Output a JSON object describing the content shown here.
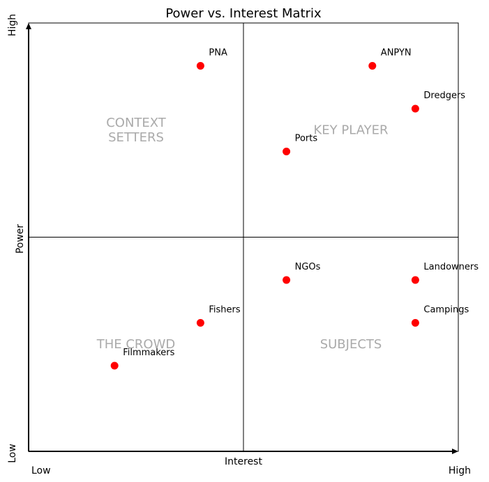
{
  "chart_data": {
    "type": "scatter",
    "title": "Power vs. Interest Matrix",
    "xlabel": "Interest",
    "ylabel": "Power",
    "xlim": [
      0,
      10
    ],
    "ylim": [
      0,
      10
    ],
    "x_low_label": "Low",
    "x_high_label": "High",
    "y_low_label": "Low",
    "y_high_label": "High",
    "grid": false,
    "quadrants": [
      {
        "id": "context-setters",
        "label": [
          "CONTEXT",
          "SETTERS"
        ],
        "x": 2.5,
        "y": 7.5
      },
      {
        "id": "key-player",
        "label": [
          "KEY PLAYER"
        ],
        "x": 7.5,
        "y": 7.5
      },
      {
        "id": "the-crowd",
        "label": [
          "THE CROWD"
        ],
        "x": 2.5,
        "y": 2.5
      },
      {
        "id": "subjects",
        "label": [
          "SUBJECTS"
        ],
        "x": 7.5,
        "y": 2.5
      }
    ],
    "points": [
      {
        "label": "PNA",
        "x": 4,
        "y": 9
      },
      {
        "label": "ANPYN",
        "x": 8,
        "y": 9
      },
      {
        "label": "Dredgers",
        "x": 9,
        "y": 8
      },
      {
        "label": "Ports",
        "x": 6,
        "y": 7
      },
      {
        "label": "NGOs",
        "x": 6,
        "y": 4
      },
      {
        "label": "Landowners",
        "x": 9,
        "y": 4
      },
      {
        "label": "Fishers",
        "x": 4,
        "y": 3
      },
      {
        "label": "Campings",
        "x": 9,
        "y": 3
      },
      {
        "label": "Filmmakers",
        "x": 2,
        "y": 2
      }
    ],
    "point_color": "#ff0000",
    "quadrant_label_color": "#aaaaaa"
  }
}
